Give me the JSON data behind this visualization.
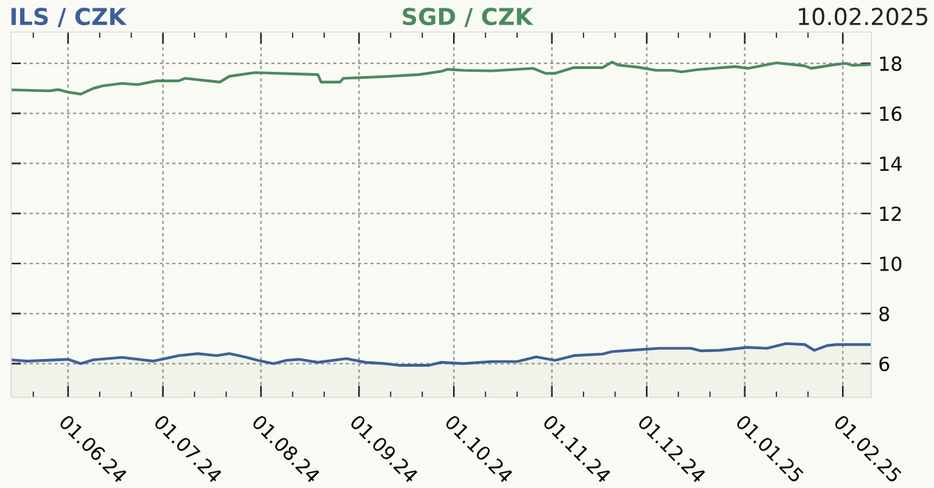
{
  "chart_data": {
    "type": "line",
    "annotations": [
      "10.02.2025"
    ],
    "xlim": [
      "2024-05-14",
      "2025-02-10"
    ],
    "ylim": [
      4.65,
      19.25
    ],
    "yticks": [
      6,
      8,
      10,
      12,
      14,
      16,
      18
    ],
    "xticks": [
      {
        "value": "2024-05-21",
        "label": null
      },
      {
        "value": "2024-06-01",
        "label": "01.06.24"
      },
      {
        "value": "2024-06-11",
        "label": null
      },
      {
        "value": "2024-06-21",
        "label": null
      },
      {
        "value": "2024-07-01",
        "label": "01.07.24"
      },
      {
        "value": "2024-07-11",
        "label": null
      },
      {
        "value": "2024-07-21",
        "label": null
      },
      {
        "value": "2024-08-01",
        "label": "01.08.24"
      },
      {
        "value": "2024-08-11",
        "label": null
      },
      {
        "value": "2024-08-21",
        "label": null
      },
      {
        "value": "2024-09-01",
        "label": "01.09.24"
      },
      {
        "value": "2024-09-11",
        "label": null
      },
      {
        "value": "2024-09-21",
        "label": null
      },
      {
        "value": "2024-10-01",
        "label": "01.10.24"
      },
      {
        "value": "2024-10-11",
        "label": null
      },
      {
        "value": "2024-10-21",
        "label": null
      },
      {
        "value": "2024-11-01",
        "label": "01.11.24"
      },
      {
        "value": "2024-11-11",
        "label": null
      },
      {
        "value": "2024-11-21",
        "label": null
      },
      {
        "value": "2024-12-01",
        "label": "01.12.24"
      },
      {
        "value": "2024-12-11",
        "label": null
      },
      {
        "value": "2024-12-21",
        "label": null
      },
      {
        "value": "2025-01-01",
        "label": "01.01.25"
      },
      {
        "value": "2025-01-11",
        "label": null
      },
      {
        "value": "2025-01-21",
        "label": null
      },
      {
        "value": "2025-02-01",
        "label": "01.02.25"
      }
    ],
    "grid": true,
    "legend": false,
    "line_style": "solid",
    "marker": "none",
    "series": [
      {
        "name": "ILS / CZK",
        "type": "area",
        "color": "#3d5f99",
        "x": [
          "2024-05-14",
          "2024-05-19",
          "2024-06-01",
          "2024-06-05",
          "2024-06-09",
          "2024-06-18",
          "2024-06-28",
          "2024-07-06",
          "2024-07-12",
          "2024-07-18",
          "2024-07-22",
          "2024-07-27",
          "2024-07-31",
          "2024-08-05",
          "2024-08-09",
          "2024-08-13",
          "2024-08-19",
          "2024-08-28",
          "2024-09-03",
          "2024-09-09",
          "2024-09-14",
          "2024-09-23",
          "2024-09-27",
          "2024-10-04",
          "2024-10-13",
          "2024-10-21",
          "2024-10-27",
          "2024-11-02",
          "2024-11-08",
          "2024-11-17",
          "2024-11-20",
          "2024-11-28",
          "2024-12-05",
          "2024-12-15",
          "2024-12-18",
          "2024-12-24",
          "2025-01-02",
          "2025-01-08",
          "2025-01-14",
          "2025-01-20",
          "2025-01-23",
          "2025-01-27",
          "2025-01-30",
          "2025-02-10"
        ],
        "values": [
          6.15,
          6.1,
          6.17,
          6.0,
          6.15,
          6.25,
          6.1,
          6.32,
          6.4,
          6.32,
          6.4,
          6.26,
          6.13,
          6.0,
          6.13,
          6.17,
          6.05,
          6.2,
          6.05,
          6.0,
          5.93,
          5.93,
          6.05,
          6.0,
          6.08,
          6.08,
          6.27,
          6.13,
          6.32,
          6.38,
          6.48,
          6.55,
          6.61,
          6.61,
          6.51,
          6.53,
          6.65,
          6.61,
          6.8,
          6.76,
          6.53,
          6.72,
          6.76,
          6.76
        ]
      },
      {
        "name": "SGD / CZK",
        "color": "#4a8a5e",
        "x": [
          "2024-05-14",
          "2024-05-20",
          "2024-05-26",
          "2024-05-29",
          "2024-06-01",
          "2024-06-05",
          "2024-06-09",
          "2024-06-12",
          "2024-06-18",
          "2024-06-23",
          "2024-06-29",
          "2024-07-06",
          "2024-07-08",
          "2024-07-19",
          "2024-07-22",
          "2024-07-30",
          "2024-08-19",
          "2024-08-20",
          "2024-08-26",
          "2024-08-27",
          "2024-09-09",
          "2024-09-20",
          "2024-09-27",
          "2024-09-29",
          "2024-10-04",
          "2024-10-13",
          "2024-10-26",
          "2024-10-30",
          "2024-11-02",
          "2024-11-08",
          "2024-11-17",
          "2024-11-20",
          "2024-11-22",
          "2024-11-28",
          "2024-12-04",
          "2024-12-09",
          "2024-12-12",
          "2024-12-17",
          "2024-12-29",
          "2025-01-02",
          "2025-01-11",
          "2025-01-20",
          "2025-01-22",
          "2025-01-29",
          "2025-02-02",
          "2025-02-04",
          "2025-02-10"
        ],
        "values": [
          16.94,
          16.92,
          16.9,
          16.95,
          16.85,
          16.77,
          17.0,
          17.1,
          17.2,
          17.15,
          17.3,
          17.3,
          17.4,
          17.25,
          17.48,
          17.63,
          17.55,
          17.25,
          17.25,
          17.4,
          17.47,
          17.55,
          17.68,
          17.76,
          17.72,
          17.7,
          17.8,
          17.6,
          17.6,
          17.83,
          17.83,
          18.05,
          17.93,
          17.85,
          17.72,
          17.72,
          17.66,
          17.75,
          17.87,
          17.8,
          18.02,
          17.9,
          17.8,
          17.94,
          18.0,
          17.92,
          17.95
        ]
      }
    ]
  }
}
